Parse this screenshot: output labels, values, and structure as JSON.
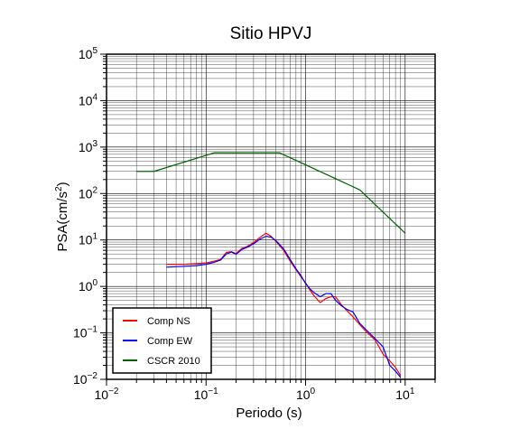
{
  "chart_data": {
    "type": "line",
    "title": "Sitio HPVJ",
    "xlabel": "Periodo (s)",
    "ylabel_prefix": "PSA(cm/s",
    "ylabel_sup": "2",
    "ylabel_suffix": ")",
    "xscale": "log",
    "yscale": "log",
    "xlim": [
      0.01,
      20
    ],
    "ylim": [
      0.01,
      100000
    ],
    "grid": true,
    "legend_position": "bottom-left",
    "x_ticks": [
      {
        "value": 0.01,
        "base": "10",
        "exp": "−2"
      },
      {
        "value": 0.1,
        "base": "10",
        "exp": "−1"
      },
      {
        "value": 1,
        "base": "10",
        "exp": "0"
      },
      {
        "value": 10,
        "base": "10",
        "exp": "1"
      }
    ],
    "y_ticks": [
      {
        "value": 0.01,
        "base": "10",
        "exp": "−2"
      },
      {
        "value": 0.1,
        "base": "10",
        "exp": "−1"
      },
      {
        "value": 1,
        "base": "10",
        "exp": "0"
      },
      {
        "value": 10,
        "base": "10",
        "exp": "1"
      },
      {
        "value": 100,
        "base": "10",
        "exp": "2"
      },
      {
        "value": 1000,
        "base": "10",
        "exp": "3"
      },
      {
        "value": 10000,
        "base": "10",
        "exp": "4"
      },
      {
        "value": 100000,
        "base": "10",
        "exp": "5"
      }
    ],
    "series": [
      {
        "name": "Comp NS",
        "color": "#ff0000",
        "points": [
          [
            0.04,
            3.0
          ],
          [
            0.06,
            3.0
          ],
          [
            0.08,
            3.1
          ],
          [
            0.1,
            3.2
          ],
          [
            0.12,
            3.5
          ],
          [
            0.14,
            3.8
          ],
          [
            0.16,
            5.4
          ],
          [
            0.18,
            5.6
          ],
          [
            0.2,
            5.1
          ],
          [
            0.23,
            6.6
          ],
          [
            0.26,
            7.3
          ],
          [
            0.3,
            8.8
          ],
          [
            0.35,
            11.5
          ],
          [
            0.4,
            14.0
          ],
          [
            0.45,
            12.0
          ],
          [
            0.5,
            9.5
          ],
          [
            0.6,
            6.0
          ],
          [
            0.7,
            3.5
          ],
          [
            0.8,
            2.3
          ],
          [
            0.9,
            1.6
          ],
          [
            1.0,
            1.2
          ],
          [
            1.1,
            0.85
          ],
          [
            1.2,
            0.65
          ],
          [
            1.4,
            0.45
          ],
          [
            1.6,
            0.55
          ],
          [
            1.8,
            0.6
          ],
          [
            2.0,
            0.6
          ],
          [
            2.3,
            0.4
          ],
          [
            2.6,
            0.3
          ],
          [
            3.0,
            0.22
          ],
          [
            3.5,
            0.15
          ],
          [
            4.0,
            0.11
          ],
          [
            5.0,
            0.07
          ],
          [
            6.0,
            0.035
          ],
          [
            7.0,
            0.025
          ],
          [
            8.0,
            0.018
          ],
          [
            9.0,
            0.012
          ]
        ]
      },
      {
        "name": "Comp EW",
        "color": "#0000ff",
        "points": [
          [
            0.04,
            2.6
          ],
          [
            0.06,
            2.7
          ],
          [
            0.08,
            2.8
          ],
          [
            0.1,
            3.0
          ],
          [
            0.12,
            3.3
          ],
          [
            0.14,
            3.7
          ],
          [
            0.16,
            5.0
          ],
          [
            0.18,
            5.5
          ],
          [
            0.2,
            4.9
          ],
          [
            0.23,
            6.3
          ],
          [
            0.26,
            7.0
          ],
          [
            0.3,
            8.3
          ],
          [
            0.35,
            10.5
          ],
          [
            0.4,
            12.0
          ],
          [
            0.45,
            11.5
          ],
          [
            0.5,
            9.8
          ],
          [
            0.6,
            6.5
          ],
          [
            0.7,
            3.8
          ],
          [
            0.8,
            2.4
          ],
          [
            0.9,
            1.7
          ],
          [
            1.0,
            1.15
          ],
          [
            1.1,
            0.9
          ],
          [
            1.2,
            0.75
          ],
          [
            1.4,
            0.6
          ],
          [
            1.6,
            0.7
          ],
          [
            1.8,
            0.7
          ],
          [
            2.0,
            0.5
          ],
          [
            2.3,
            0.38
          ],
          [
            2.6,
            0.32
          ],
          [
            3.0,
            0.28
          ],
          [
            3.5,
            0.16
          ],
          [
            4.0,
            0.12
          ],
          [
            5.0,
            0.075
          ],
          [
            6.0,
            0.05
          ],
          [
            7.0,
            0.02
          ],
          [
            8.0,
            0.015
          ],
          [
            9.0,
            0.011
          ]
        ]
      },
      {
        "name": "CSCR 2010",
        "color": "#006400",
        "points": [
          [
            0.02,
            300
          ],
          [
            0.03,
            300
          ],
          [
            0.12,
            750
          ],
          [
            0.55,
            750
          ],
          [
            3.5,
            120
          ],
          [
            10.0,
            14
          ]
        ]
      }
    ]
  }
}
